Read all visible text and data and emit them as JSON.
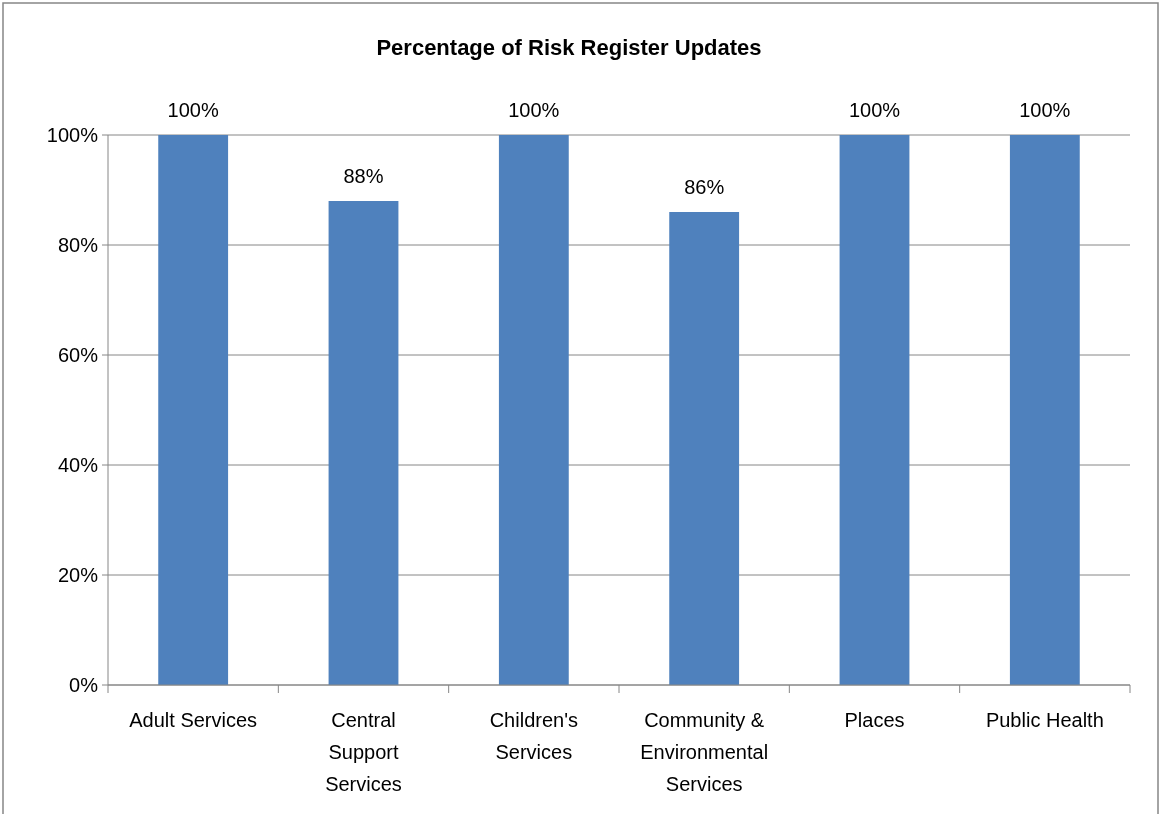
{
  "chart_data": {
    "type": "bar",
    "title": "Percentage of Risk Register Updates",
    "categories": [
      "Adult Services",
      "Central Support Services",
      "Children's Services",
      "Community & Environmental Services",
      "Places",
      "Public Health"
    ],
    "values": [
      100,
      88,
      100,
      86,
      100,
      100
    ],
    "value_labels": [
      "100%",
      "88%",
      "100%",
      "86%",
      "100%",
      "100%"
    ],
    "color": "#4f81bd",
    "ylim": [
      0,
      100
    ],
    "yticks": [
      {
        "value": 0,
        "label": "0%"
      },
      {
        "value": 20,
        "label": "20%"
      },
      {
        "value": 40,
        "label": "40%"
      },
      {
        "value": 60,
        "label": "60%"
      },
      {
        "value": 80,
        "label": "80%"
      },
      {
        "value": 100,
        "label": "100%"
      }
    ],
    "grid": "y"
  }
}
